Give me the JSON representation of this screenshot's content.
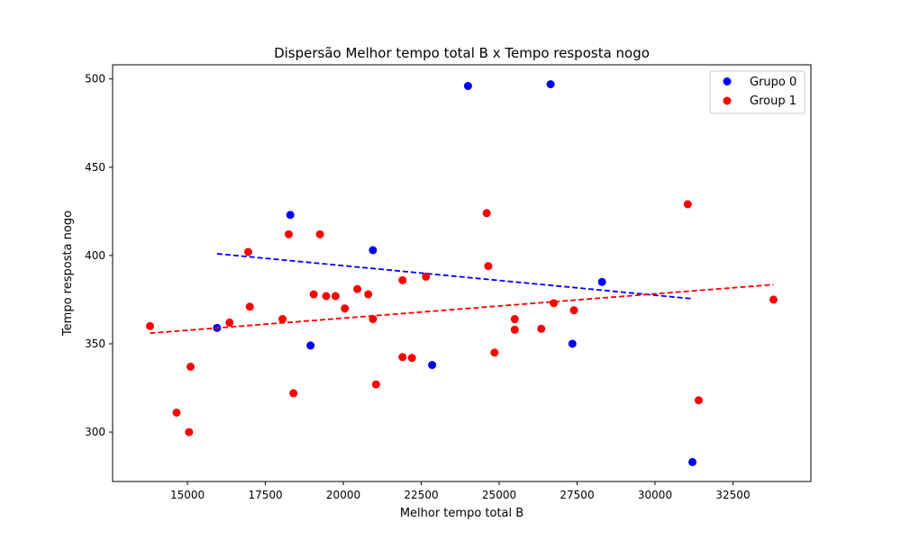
{
  "chart_data": {
    "type": "scatter",
    "title": "Dispersão Melhor tempo total B x Tempo resposta nogo",
    "xlabel": "Melhor tempo total B",
    "ylabel": "Tempo resposta nogo",
    "xlim": [
      12600,
      35000
    ],
    "ylim": [
      272,
      508
    ],
    "xticks": [
      15000,
      17500,
      20000,
      22500,
      25000,
      27500,
      30000,
      32500
    ],
    "yticks": [
      300,
      350,
      400,
      450,
      500
    ],
    "grid": false,
    "legend_position": "top-right",
    "series": [
      {
        "name": "Grupo 0",
        "color": "#0000ff",
        "points": [
          [
            15950,
            359
          ],
          [
            18300,
            423
          ],
          [
            18950,
            349
          ],
          [
            20950,
            403
          ],
          [
            22850,
            338
          ],
          [
            24000,
            496
          ],
          [
            26650,
            497
          ],
          [
            27350,
            350
          ],
          [
            28300,
            385
          ],
          [
            31200,
            283
          ]
        ],
        "trendline": {
          "x": [
            15950,
            31200
          ],
          "y": [
            401,
            375.5
          ]
        }
      },
      {
        "name": "Group 1",
        "color": "#ff0000",
        "points": [
          [
            13800,
            360
          ],
          [
            14650,
            311
          ],
          [
            15050,
            300
          ],
          [
            15100,
            337
          ],
          [
            16350,
            362
          ],
          [
            16950,
            402
          ],
          [
            17000,
            371
          ],
          [
            18050,
            364
          ],
          [
            18250,
            412
          ],
          [
            18400,
            322
          ],
          [
            19050,
            378
          ],
          [
            19250,
            412
          ],
          [
            19450,
            377
          ],
          [
            19750,
            377
          ],
          [
            20050,
            370
          ],
          [
            20450,
            381
          ],
          [
            20800,
            378
          ],
          [
            20950,
            364
          ],
          [
            21050,
            327
          ],
          [
            21900,
            386
          ],
          [
            21900,
            342.5
          ],
          [
            22200,
            342
          ],
          [
            22650,
            388
          ],
          [
            24600,
            424
          ],
          [
            24650,
            394
          ],
          [
            24850,
            345
          ],
          [
            25500,
            364
          ],
          [
            25500,
            358
          ],
          [
            26350,
            358.5
          ],
          [
            26750,
            373
          ],
          [
            27400,
            369
          ],
          [
            31050,
            429
          ],
          [
            31400,
            318
          ],
          [
            33800,
            375
          ]
        ],
        "trendline": {
          "x": [
            13800,
            33800
          ],
          "y": [
            356,
            383.5
          ]
        }
      }
    ]
  }
}
